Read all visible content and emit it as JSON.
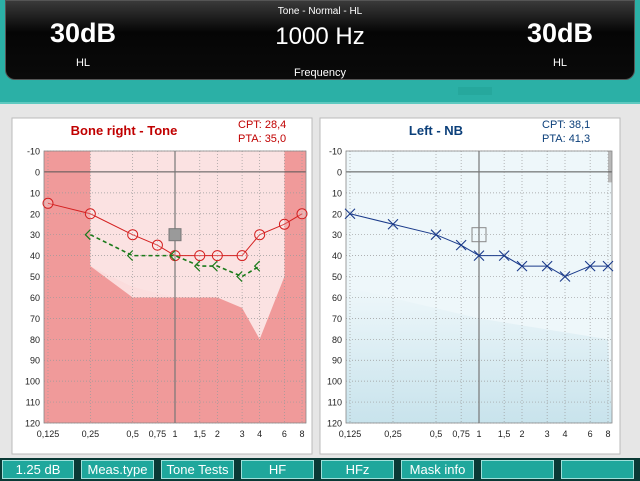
{
  "header": {
    "mode_title": "Tone - Normal - HL",
    "left_level": "30dB",
    "left_unit": "HL",
    "frequency": "1000 Hz",
    "frequency_label": "Frequency",
    "right_level": "30dB",
    "right_unit": "HL"
  },
  "left_chart": {
    "title": "Bone right - Tone",
    "cpt": "CPT: 28,4",
    "pta": "PTA: 35,0",
    "title_color": "#c00000",
    "stats_color": "#c00000"
  },
  "right_chart": {
    "title": "Left - NB",
    "cpt": "CPT: 38,1",
    "pta": "PTA: 41,3",
    "title_color": "#0b3f7a",
    "stats_color": "#0b3f7a"
  },
  "toolbar": {
    "step_label": "1.25 dB",
    "meas_type": "Meas.type",
    "tone_tests": "Tone Tests",
    "hf": "HF",
    "hfz": "HFz",
    "mask_info": "Mask info",
    "btn7": "",
    "btn8": ""
  },
  "colors": {
    "right_series": "#d42020",
    "bone_series": "#1a7a1a",
    "left_series": "#1a3a8a",
    "cursor": "#777777"
  },
  "chart_data": [
    {
      "type": "line",
      "title": "Bone right - Tone",
      "x_tick_labels": [
        "0,125",
        "0,25",
        "0,5",
        "0,75",
        "1",
        "1,5",
        "2",
        "3",
        "4",
        "6",
        "8"
      ],
      "x_khz": [
        0.125,
        0.25,
        0.5,
        0.75,
        1,
        1.5,
        2,
        3,
        4,
        6,
        8
      ],
      "y_tick_labels": [
        "-10",
        "0",
        "10",
        "20",
        "30",
        "40",
        "50",
        "60",
        "70",
        "80",
        "90",
        "100",
        "110",
        "120"
      ],
      "ylim": [
        -10,
        120
      ],
      "y_inverted": true,
      "cursor_khz": 1,
      "cursor_level_db": 30,
      "series": [
        {
          "symbol": "circle",
          "x": [
            0.125,
            0.25,
            0.5,
            0.75,
            1,
            1.5,
            2,
            3,
            4,
            6,
            8
          ],
          "y": [
            15,
            20,
            30,
            35,
            40,
            40,
            40,
            40,
            30,
            25,
            20
          ]
        },
        {
          "symbol": "bone-left",
          "x": [
            0.25,
            0.5,
            1,
            1.5,
            2,
            3,
            4
          ],
          "y": [
            30,
            40,
            40,
            45,
            45,
            50,
            45
          ]
        }
      ]
    },
    {
      "type": "line",
      "title": "Left - NB",
      "x_tick_labels": [
        "0,125",
        "0,25",
        "0,5",
        "0,75",
        "1",
        "1,5",
        "2",
        "3",
        "4",
        "6",
        "8"
      ],
      "x_khz": [
        0.125,
        0.25,
        0.5,
        0.75,
        1,
        1.5,
        2,
        3,
        4,
        6,
        8
      ],
      "y_tick_labels": [
        "-10",
        "0",
        "10",
        "20",
        "30",
        "40",
        "50",
        "60",
        "70",
        "80",
        "90",
        "100",
        "110",
        "120"
      ],
      "ylim": [
        -10,
        120
      ],
      "y_inverted": true,
      "cursor_khz": 1,
      "cursor_level_db": 30,
      "series": [
        {
          "symbol": "cross",
          "x": [
            0.125,
            0.25,
            0.5,
            0.75,
            1,
            1.5,
            2,
            3,
            4,
            6,
            8
          ],
          "y": [
            20,
            25,
            30,
            35,
            40,
            40,
            45,
            45,
            50,
            45,
            45
          ]
        }
      ]
    }
  ]
}
